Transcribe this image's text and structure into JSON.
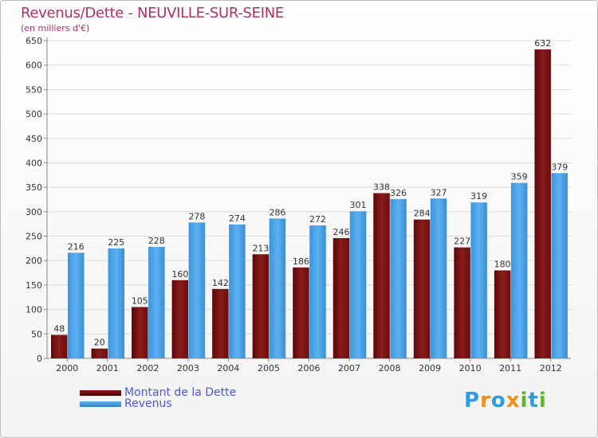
{
  "chart_data": {
    "type": "bar",
    "title": "Revenus/Dette - NEUVILLE-SUR-SEINE",
    "subtitle": "(en milliers d'€)",
    "categories": [
      "2000",
      "2001",
      "2002",
      "2003",
      "2004",
      "2005",
      "2006",
      "2007",
      "2008",
      "2009",
      "2010",
      "2011",
      "2012"
    ],
    "series": [
      {
        "name": "Montant de la Dette",
        "color": "#7a1414",
        "values": [
          48,
          20,
          105,
          160,
          142,
          213,
          186,
          246,
          338,
          284,
          227,
          180,
          632
        ]
      },
      {
        "name": "Revenus",
        "color": "#4aa3e8",
        "values": [
          216,
          225,
          228,
          278,
          274,
          286,
          272,
          301,
          326,
          327,
          319,
          359,
          379
        ]
      }
    ],
    "ylim": [
      0,
      650
    ],
    "yticks": [
      0,
      50,
      100,
      150,
      200,
      250,
      300,
      350,
      400,
      450,
      500,
      550,
      600,
      650
    ],
    "grid": true,
    "legend": "bottom-left"
  },
  "brand": {
    "letters": [
      "P",
      "r",
      "o",
      "x",
      "i",
      "t",
      "i"
    ],
    "colors": [
      "#2f9be0",
      "#f0901e",
      "#2f9be0",
      "#f0901e",
      "#5fb52e",
      "#2f9be0",
      "#5fb52e"
    ]
  }
}
